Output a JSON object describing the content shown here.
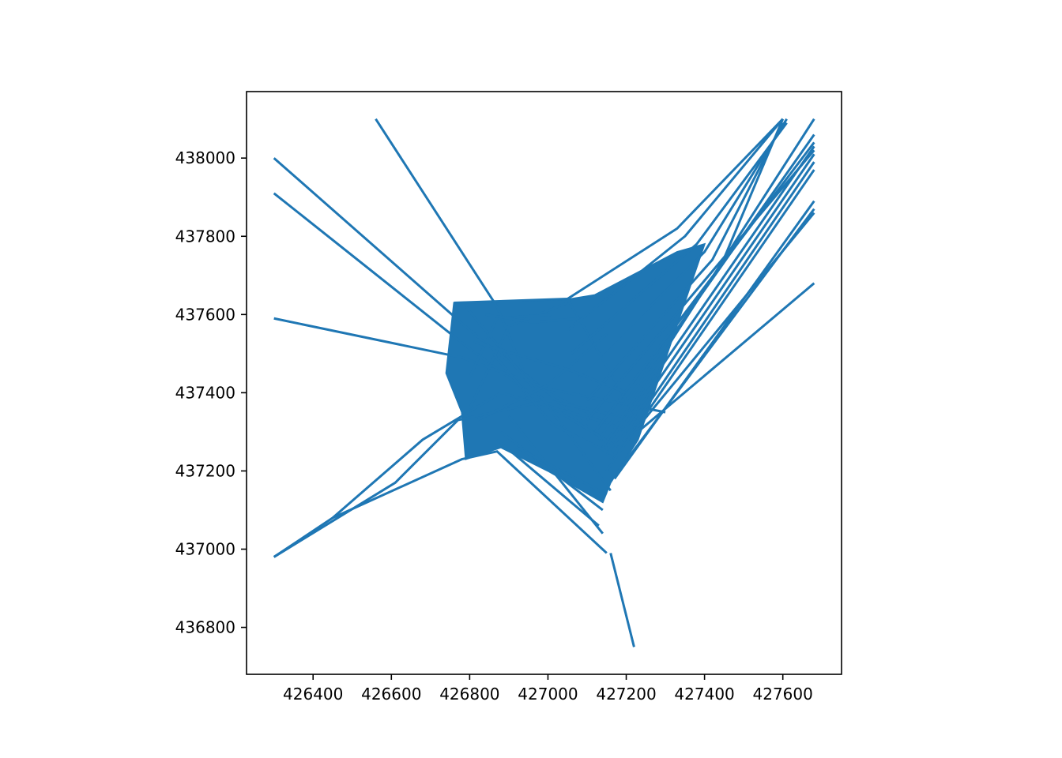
{
  "chart_data": {
    "type": "line",
    "title": "",
    "xlabel": "",
    "ylabel": "",
    "xlim": [
      426230,
      427750
    ],
    "ylim": [
      436680,
      438170
    ],
    "xticks": [
      {
        "value": 426400,
        "label": "426400"
      },
      {
        "value": 426600,
        "label": "426600"
      },
      {
        "value": 426800,
        "label": "426800"
      },
      {
        "value": 427000,
        "label": "427000"
      },
      {
        "value": 427200,
        "label": "427200"
      },
      {
        "value": 427400,
        "label": "427400"
      },
      {
        "value": 427600,
        "label": "427600"
      }
    ],
    "yticks": [
      {
        "value": 436800,
        "label": "436800"
      },
      {
        "value": 437000,
        "label": "437000"
      },
      {
        "value": 437200,
        "label": "437200"
      },
      {
        "value": 437400,
        "label": "437400"
      },
      {
        "value": 437600,
        "label": "437600"
      },
      {
        "value": 437800,
        "label": "437800"
      },
      {
        "value": 438000,
        "label": "438000"
      }
    ],
    "grid": false,
    "series_color": "#1f77b4",
    "series": [
      {
        "x": [
          426560,
          426870,
          426940,
          427140
        ],
        "y": [
          438100,
          437620,
          437450,
          437280
        ]
      },
      {
        "x": [
          426300,
          426800,
          427000,
          427200
        ],
        "y": [
          438000,
          437560,
          437400,
          437300
        ]
      },
      {
        "x": [
          426300,
          426790,
          426980,
          427180
        ],
        "y": [
          437910,
          437520,
          437380,
          437260
        ]
      },
      {
        "x": [
          426300,
          426780,
          427000,
          427300
        ],
        "y": [
          437590,
          437490,
          437410,
          437350
        ]
      },
      {
        "x": [
          426300,
          426610,
          426770,
          427000,
          427230
        ],
        "y": [
          436980,
          437170,
          437330,
          437380,
          437330
        ]
      },
      {
        "x": [
          426300,
          426450,
          426780,
          426870,
          427150
        ],
        "y": [
          436980,
          437080,
          437230,
          437250,
          436990
        ]
      },
      {
        "x": [
          427160,
          427220
        ],
        "y": [
          436990,
          436750
        ]
      },
      {
        "x": [
          426450,
          426680,
          426880,
          427160
        ],
        "y": [
          437080,
          437280,
          437400,
          437320
        ]
      },
      {
        "x": [
          426760,
          427050,
          427230
        ],
        "y": [
          437630,
          437640,
          437330
        ]
      },
      {
        "x": [
          426790,
          426990,
          427160
        ],
        "y": [
          437620,
          437380,
          437150
        ]
      },
      {
        "x": [
          427050,
          427330,
          427600
        ],
        "y": [
          437640,
          437820,
          438100
        ]
      },
      {
        "x": [
          427050,
          427350,
          427600
        ],
        "y": [
          437560,
          437800,
          438100
        ]
      },
      {
        "x": [
          427060,
          427380,
          427610
        ],
        "y": [
          437500,
          437780,
          438090
        ]
      },
      {
        "x": [
          427080,
          427400,
          427610
        ],
        "y": [
          437440,
          437760,
          438100
        ]
      },
      {
        "x": [
          427100,
          427420,
          427600
        ],
        "y": [
          437380,
          437740,
          438090
        ]
      },
      {
        "x": [
          427120,
          427440,
          427600
        ],
        "y": [
          437300,
          437720,
          438100
        ]
      },
      {
        "x": [
          427140,
          427680
        ],
        "y": [
          437260,
          438100
        ]
      },
      {
        "x": [
          427130,
          427680
        ],
        "y": [
          437280,
          438060
        ]
      },
      {
        "x": [
          427140,
          427680
        ],
        "y": [
          437250,
          438030
        ]
      },
      {
        "x": [
          427150,
          427680
        ],
        "y": [
          437240,
          438010
        ]
      },
      {
        "x": [
          427160,
          427680
        ],
        "y": [
          437230,
          437990
        ]
      },
      {
        "x": [
          427150,
          427680
        ],
        "y": [
          437200,
          437970
        ]
      },
      {
        "x": [
          427170,
          427680
        ],
        "y": [
          437180,
          437890
        ]
      },
      {
        "x": [
          427180,
          427680
        ],
        "y": [
          437200,
          437870
        ]
      },
      {
        "x": [
          427220,
          427680
        ],
        "y": [
          437300,
          437860
        ]
      },
      {
        "x": [
          427230,
          427680
        ],
        "y": [
          437300,
          437680
        ]
      },
      {
        "x": [
          427120,
          427680
        ],
        "y": [
          437300,
          438040
        ]
      },
      {
        "x": [
          427100,
          427680
        ],
        "y": [
          437330,
          438020
        ]
      },
      {
        "x": [
          426870,
          427130
        ],
        "y": [
          437280,
          437060
        ]
      },
      {
        "x": [
          426880,
          427140
        ],
        "y": [
          437300,
          437100
        ]
      },
      {
        "x": [
          426920,
          427150
        ],
        "y": [
          437260,
          437140
        ]
      },
      {
        "x": [
          426900,
          427140
        ],
        "y": [
          437340,
          437040
        ]
      },
      {
        "x": [
          426800,
          426900,
          427050
        ],
        "y": [
          437360,
          437570,
          437630
        ]
      },
      {
        "x": [
          426800,
          426870,
          427010
        ],
        "y": [
          437440,
          437590,
          437600
        ]
      },
      {
        "x": [
          426840,
          426960,
          427080
        ],
        "y": [
          437600,
          437580,
          437590
        ]
      },
      {
        "x": [
          426820,
          427000,
          427150
        ],
        "y": [
          437330,
          437420,
          437550
        ]
      },
      {
        "x": [
          426860,
          427010,
          427170
        ],
        "y": [
          437500,
          437320,
          437240
        ]
      },
      {
        "x": [
          426810,
          427050,
          427200
        ],
        "y": [
          437530,
          437460,
          437400
        ]
      }
    ],
    "filled_region": {
      "x": [
        426760,
        426790,
        427060,
        427120,
        427330,
        427400,
        427230,
        427160,
        427140,
        427000,
        426880,
        426790,
        426780,
        426740
      ],
      "y": [
        437630,
        437630,
        437640,
        437650,
        437760,
        437780,
        437280,
        437170,
        437120,
        437200,
        437260,
        437230,
        437350,
        437450
      ]
    }
  }
}
